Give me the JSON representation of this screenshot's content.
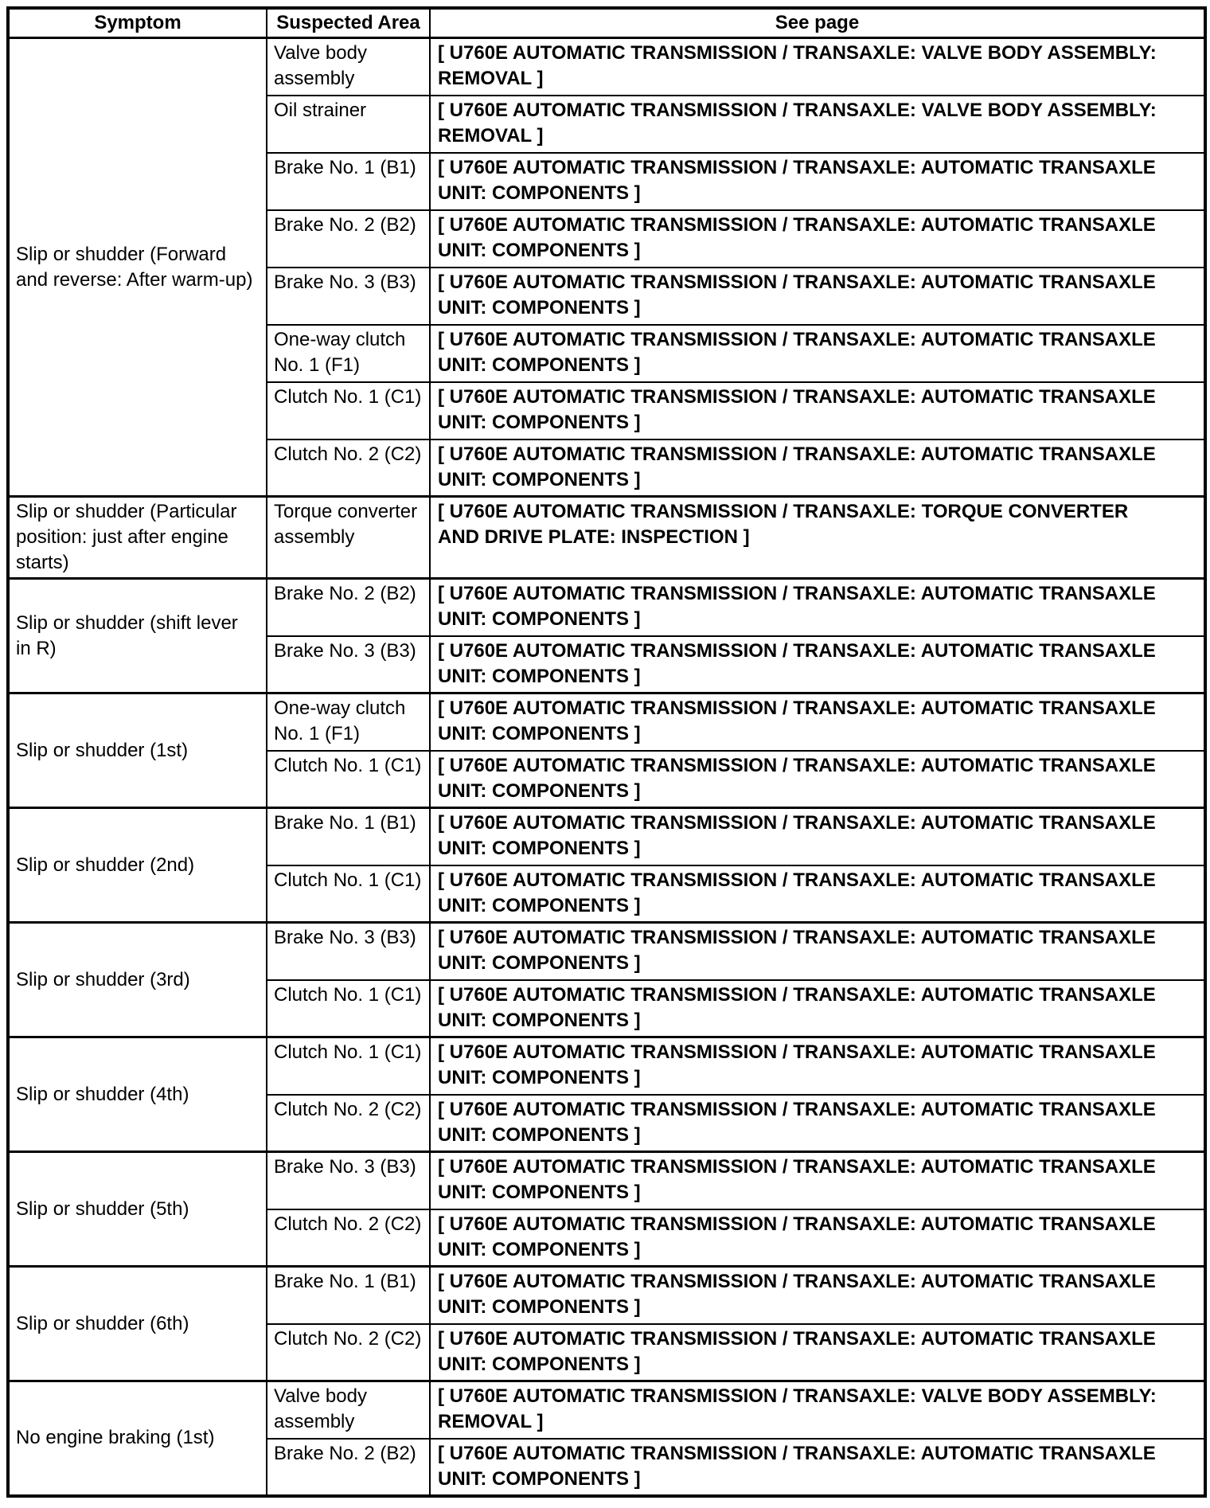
{
  "colors": {
    "background": "#ffffff",
    "border": "#000000",
    "text": "#000000"
  },
  "table": {
    "headers": [
      "Symptom",
      "Suspected Area",
      "See page"
    ],
    "groups": [
      {
        "symptom": "Slip or shudder (Forward\nand reverse: After warm-up)",
        "rows": [
          {
            "area": "Valve body\nassembly",
            "page": "[ U760E AUTOMATIC TRANSMISSION / TRANSAXLE: VALVE BODY ASSEMBLY:\nREMOVAL ]"
          },
          {
            "area": "Oil strainer",
            "page": "[ U760E AUTOMATIC TRANSMISSION / TRANSAXLE: VALVE BODY ASSEMBLY:\nREMOVAL ]"
          },
          {
            "area": "Brake No. 1 (B1)",
            "page": "[ U760E AUTOMATIC TRANSMISSION / TRANSAXLE: AUTOMATIC TRANSAXLE\nUNIT: COMPONENTS ]"
          },
          {
            "area": "Brake No. 2 (B2)",
            "page": "[ U760E AUTOMATIC TRANSMISSION / TRANSAXLE: AUTOMATIC TRANSAXLE\nUNIT: COMPONENTS ]"
          },
          {
            "area": "Brake No. 3 (B3)",
            "page": "[ U760E AUTOMATIC TRANSMISSION / TRANSAXLE: AUTOMATIC TRANSAXLE\nUNIT: COMPONENTS ]"
          },
          {
            "area": "One-way clutch\nNo. 1 (F1)",
            "page": "[ U760E AUTOMATIC TRANSMISSION / TRANSAXLE: AUTOMATIC TRANSAXLE\nUNIT: COMPONENTS ]"
          },
          {
            "area": "Clutch No. 1 (C1)",
            "page": "[ U760E AUTOMATIC TRANSMISSION / TRANSAXLE: AUTOMATIC TRANSAXLE\nUNIT: COMPONENTS ]"
          },
          {
            "area": "Clutch No. 2 (C2)",
            "page": "[ U760E AUTOMATIC TRANSMISSION / TRANSAXLE: AUTOMATIC TRANSAXLE\nUNIT: COMPONENTS ]"
          }
        ]
      },
      {
        "symptom": "Slip or shudder (Particular\nposition: just after engine\nstarts)",
        "rows": [
          {
            "area": "Torque converter\nassembly",
            "page": "[ U760E AUTOMATIC TRANSMISSION / TRANSAXLE: TORQUE CONVERTER\nAND DRIVE PLATE: INSPECTION ]"
          }
        ]
      },
      {
        "symptom": "Slip or shudder (shift lever\nin R)",
        "rows": [
          {
            "area": "Brake No. 2 (B2)",
            "page": "[ U760E AUTOMATIC TRANSMISSION / TRANSAXLE: AUTOMATIC TRANSAXLE\nUNIT: COMPONENTS ]"
          },
          {
            "area": "Brake No. 3 (B3)",
            "page": "[ U760E AUTOMATIC TRANSMISSION / TRANSAXLE: AUTOMATIC TRANSAXLE\nUNIT: COMPONENTS ]"
          }
        ]
      },
      {
        "symptom": "Slip or shudder (1st)",
        "rows": [
          {
            "area": "One-way clutch\nNo. 1 (F1)",
            "page": "[ U760E AUTOMATIC TRANSMISSION / TRANSAXLE: AUTOMATIC TRANSAXLE\nUNIT: COMPONENTS ]"
          },
          {
            "area": "Clutch No. 1 (C1)",
            "page": "[ U760E AUTOMATIC TRANSMISSION / TRANSAXLE: AUTOMATIC TRANSAXLE\nUNIT: COMPONENTS ]"
          }
        ]
      },
      {
        "symptom": "Slip or shudder (2nd)",
        "rows": [
          {
            "area": "Brake No. 1 (B1)",
            "page": "[ U760E AUTOMATIC TRANSMISSION / TRANSAXLE: AUTOMATIC TRANSAXLE\nUNIT: COMPONENTS ]"
          },
          {
            "area": "Clutch No. 1 (C1)",
            "page": "[ U760E AUTOMATIC TRANSMISSION / TRANSAXLE: AUTOMATIC TRANSAXLE\nUNIT: COMPONENTS ]"
          }
        ]
      },
      {
        "symptom": "Slip or shudder (3rd)",
        "rows": [
          {
            "area": "Brake No. 3 (B3)",
            "page": "[ U760E AUTOMATIC TRANSMISSION / TRANSAXLE: AUTOMATIC TRANSAXLE\nUNIT: COMPONENTS ]"
          },
          {
            "area": "Clutch No. 1 (C1)",
            "page": "[ U760E AUTOMATIC TRANSMISSION / TRANSAXLE: AUTOMATIC TRANSAXLE\nUNIT: COMPONENTS ]"
          }
        ]
      },
      {
        "symptom": "Slip or shudder (4th)",
        "rows": [
          {
            "area": "Clutch No. 1 (C1)",
            "page": "[ U760E AUTOMATIC TRANSMISSION / TRANSAXLE: AUTOMATIC TRANSAXLE\nUNIT: COMPONENTS ]"
          },
          {
            "area": "Clutch No. 2 (C2)",
            "page": "[ U760E AUTOMATIC TRANSMISSION / TRANSAXLE: AUTOMATIC TRANSAXLE\nUNIT: COMPONENTS ]"
          }
        ]
      },
      {
        "symptom": "Slip or shudder (5th)",
        "rows": [
          {
            "area": "Brake No. 3 (B3)",
            "page": "[ U760E AUTOMATIC TRANSMISSION / TRANSAXLE: AUTOMATIC TRANSAXLE\nUNIT: COMPONENTS ]"
          },
          {
            "area": "Clutch No. 2 (C2)",
            "page": "[ U760E AUTOMATIC TRANSMISSION / TRANSAXLE: AUTOMATIC TRANSAXLE\nUNIT: COMPONENTS ]"
          }
        ]
      },
      {
        "symptom": "Slip or shudder (6th)",
        "rows": [
          {
            "area": "Brake No. 1 (B1)",
            "page": "[ U760E AUTOMATIC TRANSMISSION / TRANSAXLE: AUTOMATIC TRANSAXLE\nUNIT: COMPONENTS ]"
          },
          {
            "area": "Clutch No. 2 (C2)",
            "page": "[ U760E AUTOMATIC TRANSMISSION / TRANSAXLE: AUTOMATIC TRANSAXLE\nUNIT: COMPONENTS ]"
          }
        ]
      },
      {
        "symptom": "No engine braking (1st)",
        "rows": [
          {
            "area": "Valve body\nassembly",
            "page": "[ U760E AUTOMATIC TRANSMISSION / TRANSAXLE: VALVE BODY ASSEMBLY:\nREMOVAL ]"
          },
          {
            "area": "Brake No. 2 (B2)",
            "page": "[ U760E AUTOMATIC TRANSMISSION / TRANSAXLE: AUTOMATIC TRANSAXLE\nUNIT: COMPONENTS ]"
          }
        ]
      }
    ]
  }
}
